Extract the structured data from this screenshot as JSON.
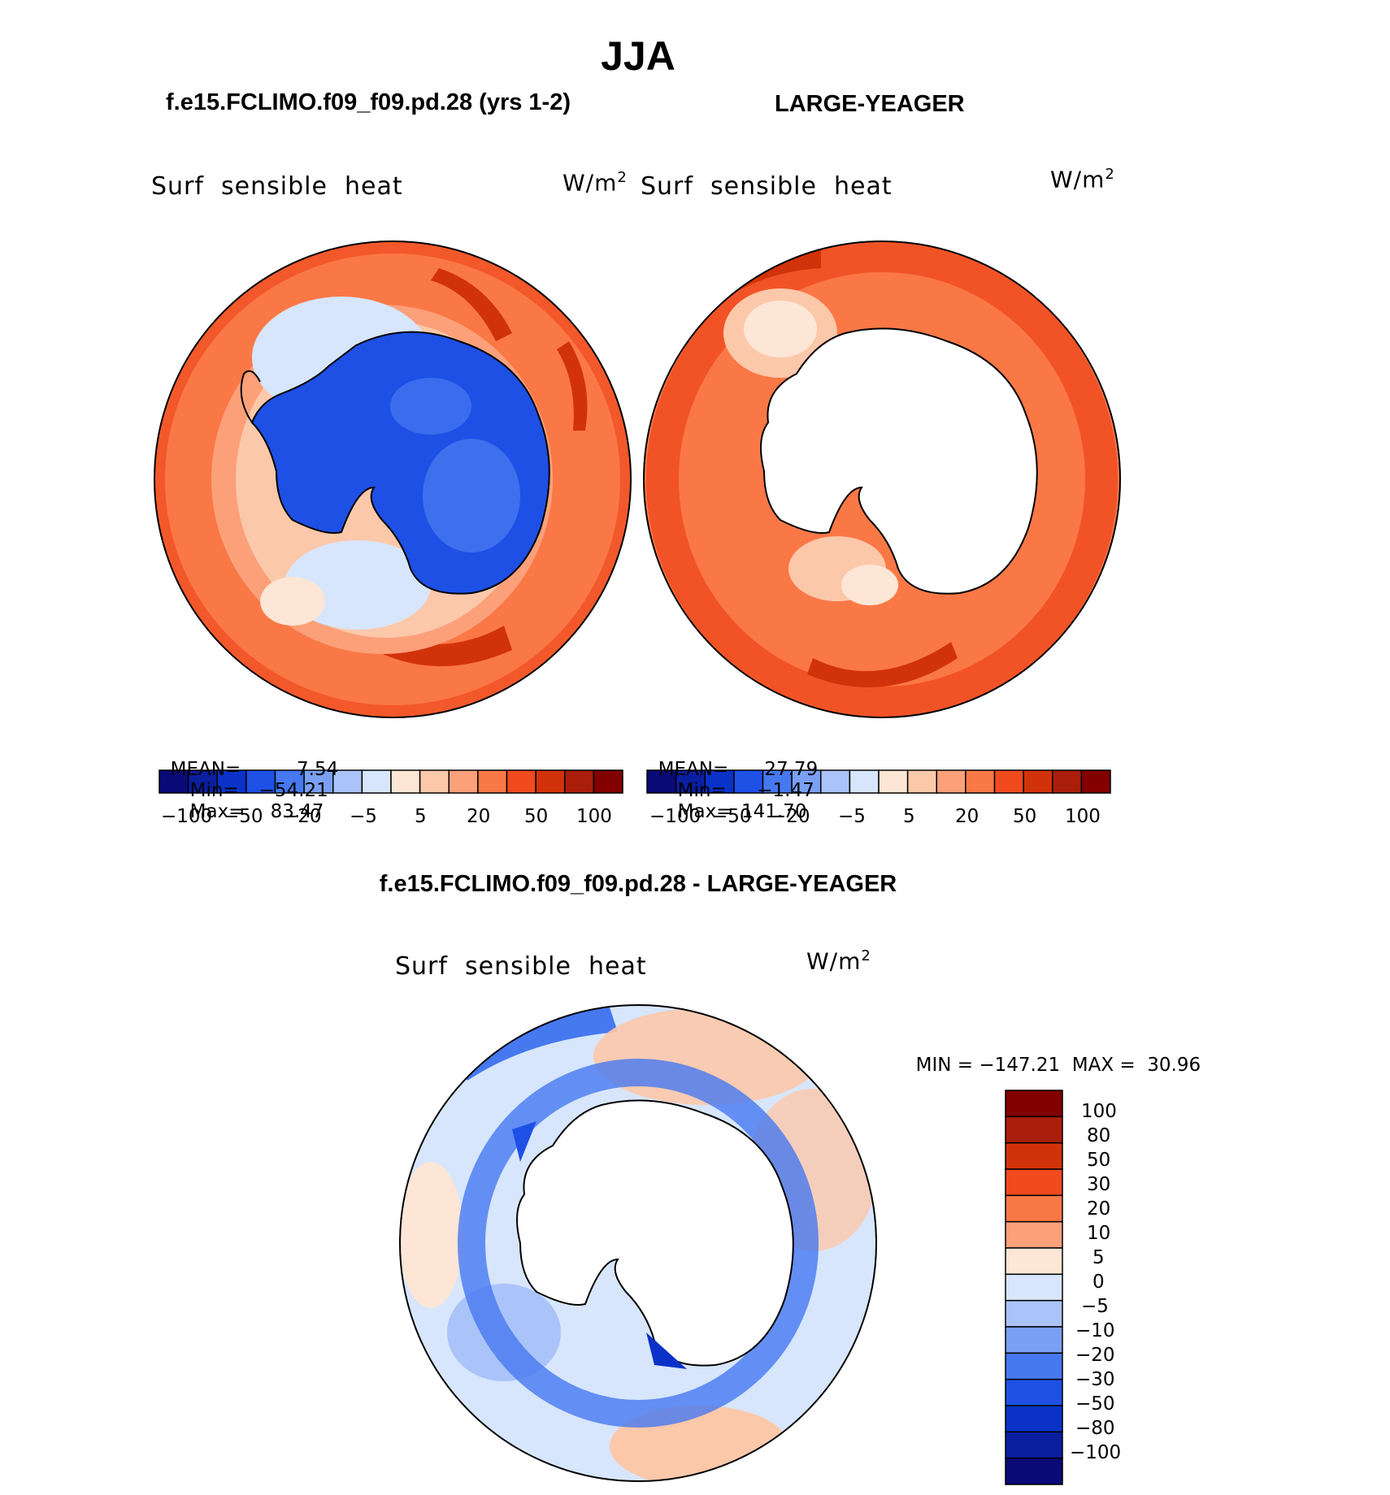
{
  "page": {
    "title": "JJA"
  },
  "panels": [
    {
      "case": "f.e15.FCLIMO.f09_f09.pd.28 (yrs 1-2)",
      "variable": "Surf  sensible  heat",
      "units": "W/m",
      "units_sup": "2",
      "mean_label": "MEAN=",
      "mean_value": "7.54",
      "min_label": "Min=",
      "min_value": "−54.21",
      "max_label": "Max=",
      "max_value": "83.47"
    },
    {
      "case": "LARGE-YEAGER",
      "variable": "Surf  sensible  heat",
      "units": "W/m",
      "units_sup": "2",
      "mean_label": "MEAN=",
      "mean_value": "27.79",
      "min_label": "Min=",
      "min_value": "−1.47",
      "max_label": "Max=",
      "max_value": "141.70"
    }
  ],
  "difference": {
    "title": "f.e15.FCLIMO.f09_f09.pd.28 - LARGE-YEAGER",
    "variable": "Surf  sensible  heat",
    "units": "W/m",
    "units_sup": "2",
    "min_label": "MIN =",
    "min_value": "−147.21",
    "max_label": "MAX =",
    "max_value": "30.96"
  },
  "colorbar_top": {
    "colors": [
      "#0a0a78",
      "#0a1ea0",
      "#0a32c8",
      "#1e50e6",
      "#4678f0",
      "#7aa0f5",
      "#aac4fa",
      "#d7e6fc",
      "#fde6d6",
      "#fcc8aa",
      "#fca07a",
      "#fa7846",
      "#f04a1e",
      "#d2320a",
      "#aa1e0a",
      "#820000"
    ],
    "tick_labels": [
      "−100",
      "−50",
      "−20",
      "−5",
      "5",
      "20",
      "50",
      "100"
    ]
  },
  "colorbar_diff": {
    "colors": [
      "#820000",
      "#aa1e0a",
      "#d2320a",
      "#f04a1e",
      "#fa7846",
      "#fca07a",
      "#fde6d6",
      "#d7e6fc",
      "#aac4fa",
      "#7aa0f5",
      "#4678f0",
      "#1e50e6",
      "#0a32c8",
      "#0a1ea0",
      "#0a0a78"
    ],
    "tick_labels": [
      "100",
      "80",
      "50",
      "30",
      "20",
      "10",
      "5",
      "0",
      "−5",
      "−10",
      "−20",
      "−30",
      "−50",
      "−80",
      "−100"
    ]
  }
}
